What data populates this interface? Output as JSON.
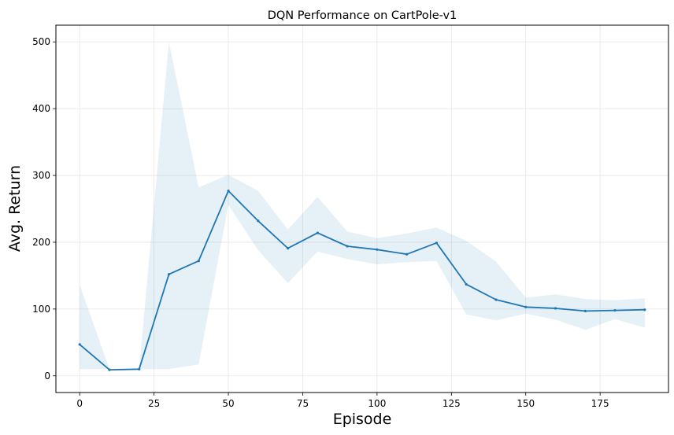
{
  "chart_data": {
    "type": "line",
    "title": "DQN Performance on CartPole-v1",
    "xlabel": "Episode",
    "ylabel": "Avg. Return",
    "xlim": [
      -8,
      198
    ],
    "ylim": [
      -25,
      525
    ],
    "xticks": [
      0,
      25,
      50,
      75,
      100,
      125,
      150,
      175
    ],
    "yticks": [
      0,
      100,
      200,
      300,
      400,
      500
    ],
    "grid": true,
    "colors": {
      "line": "#1f77b4",
      "band": "#1f77b4"
    },
    "series": [
      {
        "x": [
          0,
          10,
          20,
          30,
          40,
          50,
          60,
          70,
          80,
          90,
          100,
          110,
          120,
          130,
          140,
          150,
          160,
          170,
          180,
          190
        ],
        "values": [
          47,
          9,
          10,
          152,
          172,
          277,
          232,
          191,
          214,
          194,
          189,
          182,
          199,
          137,
          114,
          103,
          101,
          97,
          98,
          99
        ],
        "lower": [
          10,
          10,
          10,
          10,
          17,
          256,
          188,
          139,
          186,
          175,
          167,
          170,
          172,
          92,
          83,
          93,
          84,
          69,
          85,
          72
        ],
        "upper": [
          136,
          10,
          10,
          500,
          282,
          301,
          277,
          219,
          268,
          216,
          206,
          213,
          222,
          202,
          171,
          117,
          122,
          115,
          113,
          116
        ]
      }
    ]
  }
}
